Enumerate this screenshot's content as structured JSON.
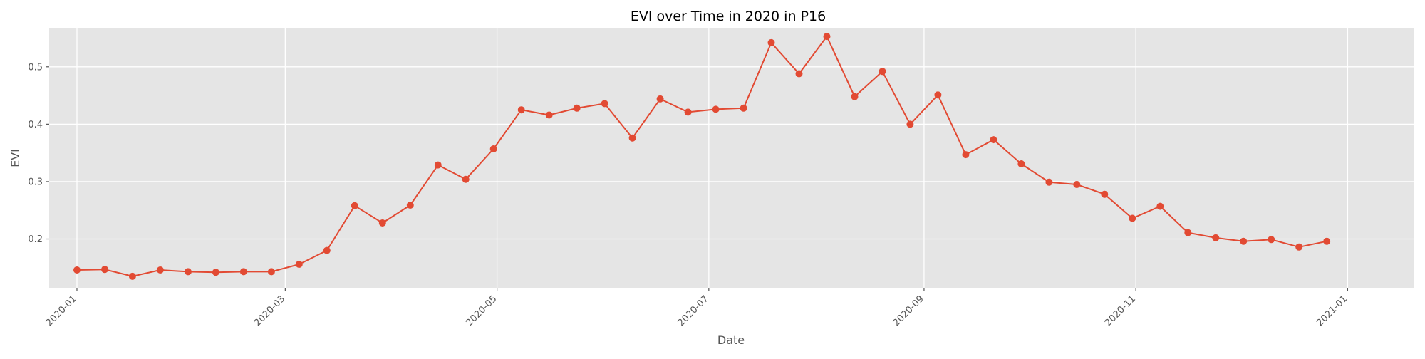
{
  "chart_data": {
    "type": "line",
    "title": "EVI over Time in 2020 in P16",
    "xlabel": "Date",
    "ylabel": "EVI",
    "x_ticks": [
      "2020-01",
      "2020-03",
      "2020-05",
      "2020-07",
      "2020-09",
      "2020-11",
      "2021-01"
    ],
    "y_ticks": [
      "0.2",
      "0.3",
      "0.4",
      "0.5"
    ],
    "ylim": [
      0.115,
      0.568
    ],
    "xlim": [
      "2019-12-24",
      "2021-01-20"
    ],
    "grid": true,
    "style": {
      "background": "#e5e5e5",
      "grid_color": "#ffffff",
      "line_color": "#e24a33",
      "text_color": "#555555",
      "title_color": "#000000"
    },
    "series": [
      {
        "x": [
          "2020-01-01",
          "2020-01-09",
          "2020-01-17",
          "2020-01-25",
          "2020-02-02",
          "2020-02-10",
          "2020-02-18",
          "2020-02-26",
          "2020-03-05",
          "2020-03-13",
          "2020-03-21",
          "2020-03-29",
          "2020-04-06",
          "2020-04-14",
          "2020-04-22",
          "2020-04-30",
          "2020-05-08",
          "2020-05-16",
          "2020-05-24",
          "2020-06-01",
          "2020-06-09",
          "2020-06-17",
          "2020-06-25",
          "2020-07-03",
          "2020-07-11",
          "2020-07-19",
          "2020-07-27",
          "2020-08-04",
          "2020-08-12",
          "2020-08-20",
          "2020-08-28",
          "2020-09-05",
          "2020-09-13",
          "2020-09-21",
          "2020-09-29",
          "2020-10-07",
          "2020-10-15",
          "2020-10-23",
          "2020-10-31",
          "2020-11-08",
          "2020-11-16",
          "2020-11-24",
          "2020-12-02",
          "2020-12-10",
          "2020-12-18",
          "2020-12-26"
        ],
        "y": [
          0.146,
          0.147,
          0.135,
          0.146,
          0.143,
          0.142,
          0.143,
          0.143,
          0.156,
          0.18,
          0.258,
          0.228,
          0.259,
          0.329,
          0.304,
          0.357,
          0.425,
          0.416,
          0.428,
          0.436,
          0.376,
          0.444,
          0.421,
          0.426,
          0.428,
          0.542,
          0.488,
          0.553,
          0.448,
          0.492,
          0.4,
          0.451,
          0.347,
          0.373,
          0.331,
          0.299,
          0.295,
          0.278,
          0.236,
          0.257,
          0.211,
          0.202,
          0.196,
          0.199,
          0.186,
          0.196
        ]
      }
    ]
  }
}
